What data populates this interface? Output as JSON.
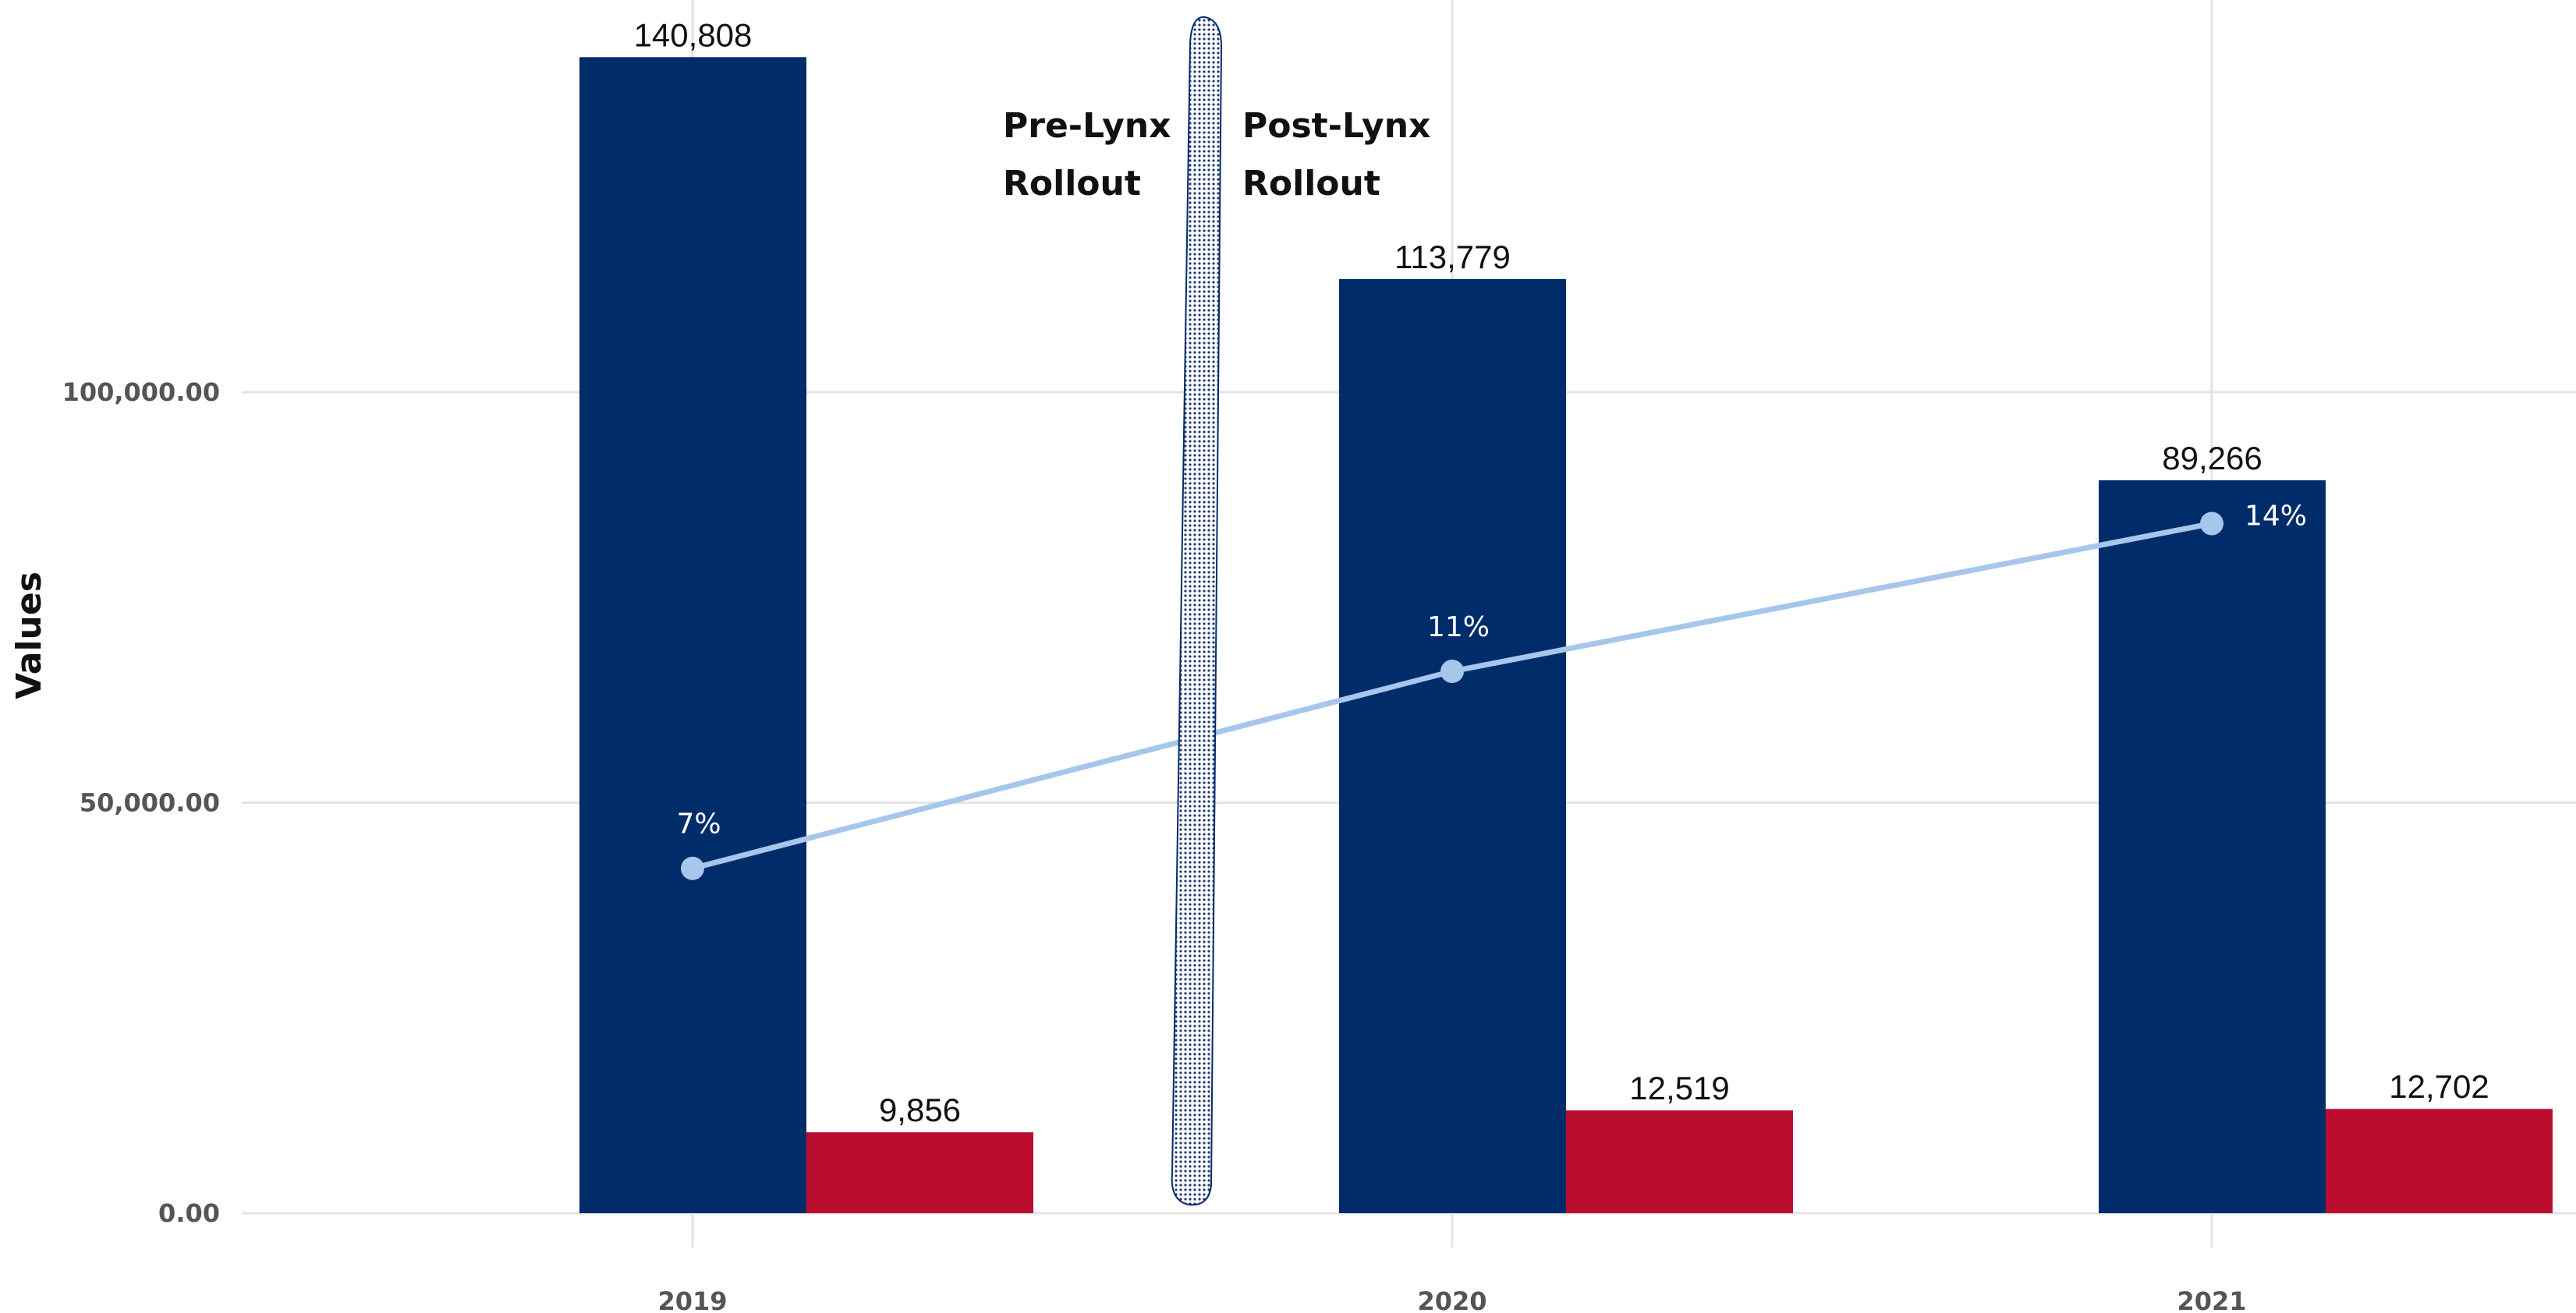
{
  "chart_data": {
    "type": "bar",
    "categories": [
      "2019",
      "2020",
      "2021"
    ],
    "series": [
      {
        "values": [
          140808,
          113779,
          89266
        ],
        "labels": [
          "140,808",
          "113,779",
          "89,266"
        ],
        "color": "#002d6a"
      },
      {
        "values": [
          9856,
          12519,
          12702
        ],
        "labels": [
          "9,856",
          "12,519",
          "12,702"
        ],
        "color": "#bb0d30"
      }
    ],
    "line_series": {
      "values": [
        42000,
        66000,
        84000
      ],
      "labels": [
        "7%",
        "11%",
        "14%"
      ],
      "color": "#a7c6ec"
    },
    "ylabel": "Values",
    "xlabel": "",
    "ylim": [
      0,
      152000
    ],
    "y_ticks": [
      0,
      50000,
      100000
    ],
    "y_tick_labels": [
      "0.00",
      "50,000.00",
      "100,000.00"
    ],
    "grid": true,
    "annotations": {
      "left_lines": [
        "Pre-Lynx",
        "Rollout"
      ],
      "right_lines": [
        "Post-Lynx",
        "Rollout"
      ],
      "divider_color": "#002d6a"
    }
  }
}
